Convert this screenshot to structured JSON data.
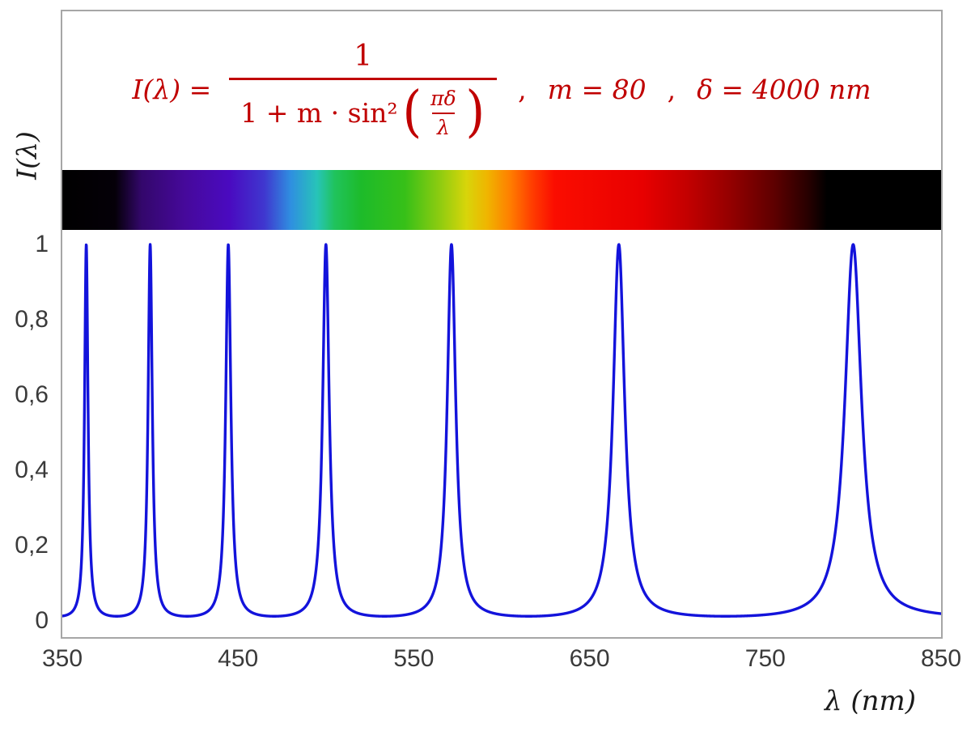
{
  "figure": {
    "border_color": "#a6a6a6",
    "background": "#ffffff"
  },
  "formula": {
    "color": "#c00000",
    "lhs": "I(λ) =",
    "numerator": "1",
    "denom_prefix": "1 + m · sin²",
    "inner_numerator": "πδ",
    "inner_denominator": "λ",
    "comma1": ",",
    "m_eq": "m = 80",
    "comma2": ",",
    "delta_eq": "δ = 4000 nm"
  },
  "axes": {
    "y_label": "I(λ)",
    "x_label": "λ  (nm)",
    "y_ticks": [
      {
        "value": 1,
        "label": "1"
      },
      {
        "value": 0.8,
        "label": "0,8"
      },
      {
        "value": 0.6,
        "label": "0,6"
      },
      {
        "value": 0.4,
        "label": "0,4"
      },
      {
        "value": 0.2,
        "label": "0,2"
      },
      {
        "value": 0,
        "label": "0"
      }
    ],
    "x_ticks": [
      {
        "value": 350,
        "label": "350"
      },
      {
        "value": 450,
        "label": "450"
      },
      {
        "value": 550,
        "label": "550"
      },
      {
        "value": 650,
        "label": "650"
      },
      {
        "value": 750,
        "label": "750"
      },
      {
        "value": 850,
        "label": "850"
      }
    ]
  },
  "spectrum_bar": {
    "range_nm": [
      350,
      850
    ],
    "visible_range_nm": [
      380,
      780
    ],
    "stops": [
      {
        "nm": 350,
        "color": "#000000"
      },
      {
        "nm": 380,
        "color": "#050008"
      },
      {
        "nm": 395,
        "color": "#33076b"
      },
      {
        "nm": 420,
        "color": "#46099b"
      },
      {
        "nm": 445,
        "color": "#4a0ac0"
      },
      {
        "nm": 465,
        "color": "#3f37cf"
      },
      {
        "nm": 480,
        "color": "#2f8fe0"
      },
      {
        "nm": 495,
        "color": "#27c4b8"
      },
      {
        "nm": 505,
        "color": "#20c35c"
      },
      {
        "nm": 520,
        "color": "#1dbb2a"
      },
      {
        "nm": 545,
        "color": "#37c018"
      },
      {
        "nm": 565,
        "color": "#8fcc10"
      },
      {
        "nm": 580,
        "color": "#d8d50a"
      },
      {
        "nm": 592,
        "color": "#f0b400"
      },
      {
        "nm": 605,
        "color": "#ff7d00"
      },
      {
        "nm": 618,
        "color": "#ff3a00"
      },
      {
        "nm": 630,
        "color": "#fb0d00"
      },
      {
        "nm": 680,
        "color": "#e80000"
      },
      {
        "nm": 705,
        "color": "#c40000"
      },
      {
        "nm": 730,
        "color": "#940000"
      },
      {
        "nm": 755,
        "color": "#5e0000"
      },
      {
        "nm": 775,
        "color": "#250000"
      },
      {
        "nm": 785,
        "color": "#000000"
      },
      {
        "nm": 850,
        "color": "#000000"
      }
    ]
  },
  "chart_data": {
    "type": "line",
    "title": "I(λ) = 1 / (1 + m·sin²(πδ/λ)) ,  m = 80 ,  δ = 4000 nm",
    "xlabel": "λ (nm)",
    "ylabel": "I(λ)",
    "xlim": [
      350,
      850
    ],
    "ylim": [
      0,
      1
    ],
    "x_tick_values": [
      350,
      450,
      550,
      650,
      750,
      850
    ],
    "y_tick_values": [
      0,
      0.2,
      0.4,
      0.6,
      0.8,
      1
    ],
    "grid": false,
    "legend": false,
    "curve_color": "#1313db",
    "function": {
      "expression": "I(lambda) = 1 / (1 + m * sin(pi * delta / lambda)^2)",
      "m": 80,
      "delta_nm": 4000
    },
    "peaks_nm": [
      363.64,
      400,
      444.44,
      500,
      571.43,
      666.67,
      800
    ],
    "peak_value": 1,
    "baseline_value_at_350nm": 0.013
  }
}
